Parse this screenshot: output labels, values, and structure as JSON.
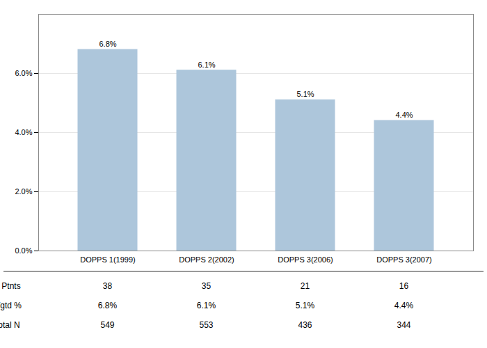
{
  "chart_data": {
    "type": "bar",
    "categories": [
      "DOPPS 1(1999)",
      "DOPPS 2(2002)",
      "DOPPS 3(2006)",
      "DOPPS 3(2007)"
    ],
    "values": [
      6.8,
      6.1,
      5.1,
      4.4
    ],
    "value_labels": [
      "6.8%",
      "6.1%",
      "5.1%",
      "4.4%"
    ],
    "data_labels": true,
    "color": "#adc6db",
    "ylim": [
      0,
      8.0
    ],
    "yticks": [
      {
        "value": 0.0,
        "label": "0.0%"
      },
      {
        "value": 2.0,
        "label": "2.0%"
      },
      {
        "value": 4.0,
        "label": "4.0%"
      },
      {
        "value": 6.0,
        "label": "6.0%"
      }
    ],
    "grid": true,
    "table": [
      {
        "label": "N Ptnts",
        "cells": [
          "38",
          "35",
          "21",
          "16"
        ]
      },
      {
        "label": "Wgtd %",
        "cells": [
          "6.8%",
          "6.1%",
          "5.1%",
          "4.4%"
        ]
      },
      {
        "label": "Total N",
        "cells": [
          "549",
          "553",
          "436",
          "344"
        ]
      }
    ]
  }
}
